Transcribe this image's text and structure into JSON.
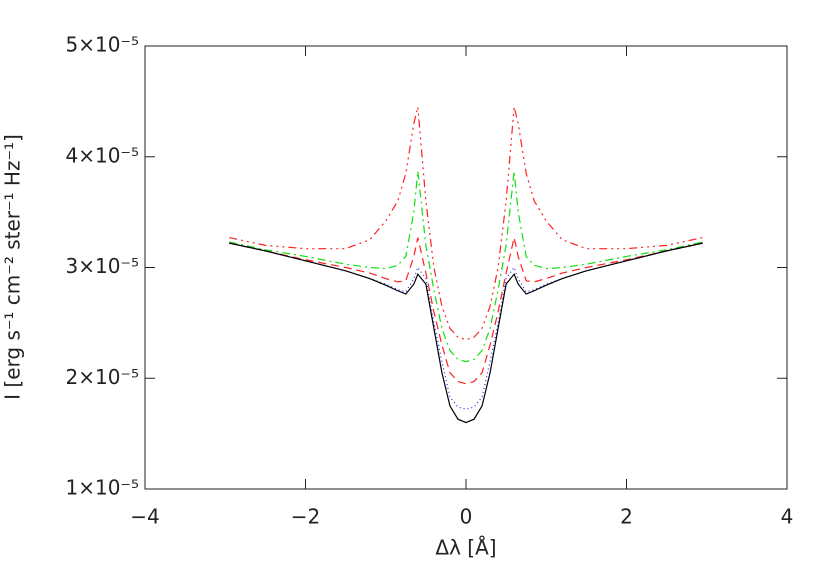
{
  "chart_data": {
    "type": "line",
    "xlabel": "Δλ [Å]",
    "ylabel": "I [erg s⁻¹ cm⁻² ster⁻¹ Hz⁻¹]",
    "xlim": [
      -4,
      4
    ],
    "xticks": [
      {
        "value": -4,
        "label": "−4"
      },
      {
        "value": -2,
        "label": "−2"
      },
      0,
      2,
      4
    ],
    "ylim": [
      1e-05,
      5e-05
    ],
    "yticks": [
      {
        "value": 1e-05,
        "label": "1×10⁻⁵"
      },
      {
        "value": 2e-05,
        "label": "2×10⁻⁵"
      },
      {
        "value": 3e-05,
        "label": "3×10⁻⁵"
      },
      {
        "value": 4e-05,
        "label": "4×10⁻⁵"
      },
      {
        "value": 5e-05,
        "label": "5×10⁻⁵"
      }
    ],
    "x": [
      -2.95,
      -2.5,
      -2,
      -1.5,
      -1.2,
      -1,
      -0.85,
      -0.75,
      -0.65,
      -0.6,
      -0.5,
      -0.4,
      -0.3,
      -0.2,
      -0.1,
      0,
      0.1,
      0.2,
      0.3,
      0.4,
      0.5,
      0.6,
      0.65,
      0.75,
      0.85,
      1,
      1.2,
      1.5,
      2,
      2.5,
      2.95
    ],
    "series": [
      {
        "color": "#ff2020",
        "dash": "8,4,2,4,2,4,2,4",
        "values": [
          3.27e-05,
          3.2e-05,
          3.17e-05,
          3.17e-05,
          3.25e-05,
          3.42e-05,
          3.6e-05,
          3.85e-05,
          4.3e-05,
          4.45e-05,
          3.6e-05,
          3e-05,
          2.65e-05,
          2.45e-05,
          2.37e-05,
          2.35e-05,
          2.37e-05,
          2.45e-05,
          2.65e-05,
          3e-05,
          3.6e-05,
          4.45e-05,
          4.3e-05,
          3.85e-05,
          3.6e-05,
          3.42e-05,
          3.25e-05,
          3.17e-05,
          3.17e-05,
          3.2e-05,
          3.27e-05
        ]
      },
      {
        "color": "#10e010",
        "dash": "8,4,2,4",
        "values": [
          3.23e-05,
          3.16e-05,
          3.1e-05,
          3.03e-05,
          3e-05,
          2.99e-05,
          3.02e-05,
          3.1e-05,
          3.5e-05,
          3.87e-05,
          3.2e-05,
          2.8e-05,
          2.45e-05,
          2.25e-05,
          2.17e-05,
          2.15e-05,
          2.17e-05,
          2.25e-05,
          2.45e-05,
          2.8e-05,
          3.2e-05,
          3.87e-05,
          3.5e-05,
          3.1e-05,
          3.02e-05,
          2.99e-05,
          3e-05,
          3.03e-05,
          3.1e-05,
          3.16e-05,
          3.23e-05
        ]
      },
      {
        "color": "#ff2020",
        "dash": "8,5",
        "values": [
          3.22e-05,
          3.15e-05,
          3.07e-05,
          3e-05,
          2.95e-05,
          2.9e-05,
          2.87e-05,
          2.88e-05,
          3.1e-05,
          3.27e-05,
          2.95e-05,
          2.6e-05,
          2.3e-05,
          2.05e-05,
          1.97e-05,
          1.95e-05,
          1.97e-05,
          2.05e-05,
          2.3e-05,
          2.6e-05,
          2.95e-05,
          3.27e-05,
          3.1e-05,
          2.88e-05,
          2.87e-05,
          2.9e-05,
          2.95e-05,
          3e-05,
          3.07e-05,
          3.15e-05,
          3.22e-05
        ]
      },
      {
        "color": "#2020ff",
        "dash": "1,3",
        "values": [
          3.22e-05,
          3.15e-05,
          3.06e-05,
          2.97e-05,
          2.9e-05,
          2.85e-05,
          2.8e-05,
          2.78e-05,
          2.9e-05,
          3e-05,
          2.9e-05,
          2.5e-05,
          2.15e-05,
          1.83e-05,
          1.74e-05,
          1.72e-05,
          1.74e-05,
          1.83e-05,
          2.15e-05,
          2.5e-05,
          2.9e-05,
          3e-05,
          2.9e-05,
          2.78e-05,
          2.8e-05,
          2.85e-05,
          2.9e-05,
          2.97e-05,
          3.06e-05,
          3.15e-05,
          3.22e-05
        ]
      },
      {
        "color": "#000000",
        "dash": "none",
        "values": [
          3.22e-05,
          3.15e-05,
          3.06e-05,
          2.97e-05,
          2.9e-05,
          2.84e-05,
          2.79e-05,
          2.76e-05,
          2.85e-05,
          2.94e-05,
          2.85e-05,
          2.45e-05,
          2.05e-05,
          1.75e-05,
          1.63e-05,
          1.6e-05,
          1.63e-05,
          1.75e-05,
          2.05e-05,
          2.45e-05,
          2.85e-05,
          2.94e-05,
          2.85e-05,
          2.76e-05,
          2.79e-05,
          2.84e-05,
          2.9e-05,
          2.97e-05,
          3.06e-05,
          3.15e-05,
          3.22e-05
        ]
      }
    ]
  }
}
